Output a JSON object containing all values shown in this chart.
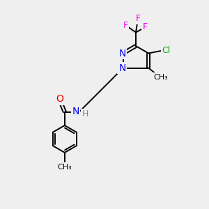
{
  "background_color": "#efefef",
  "bond_color": "#000000",
  "atom_colors": {
    "N": "#0000ee",
    "O": "#dd0000",
    "F": "#ee00ee",
    "Cl": "#00aa00",
    "C": "#000000",
    "H": "#888888"
  },
  "line_width": 1.4,
  "font_size": 9,
  "xlim": [
    0,
    10
  ],
  "ylim": [
    0,
    10
  ]
}
